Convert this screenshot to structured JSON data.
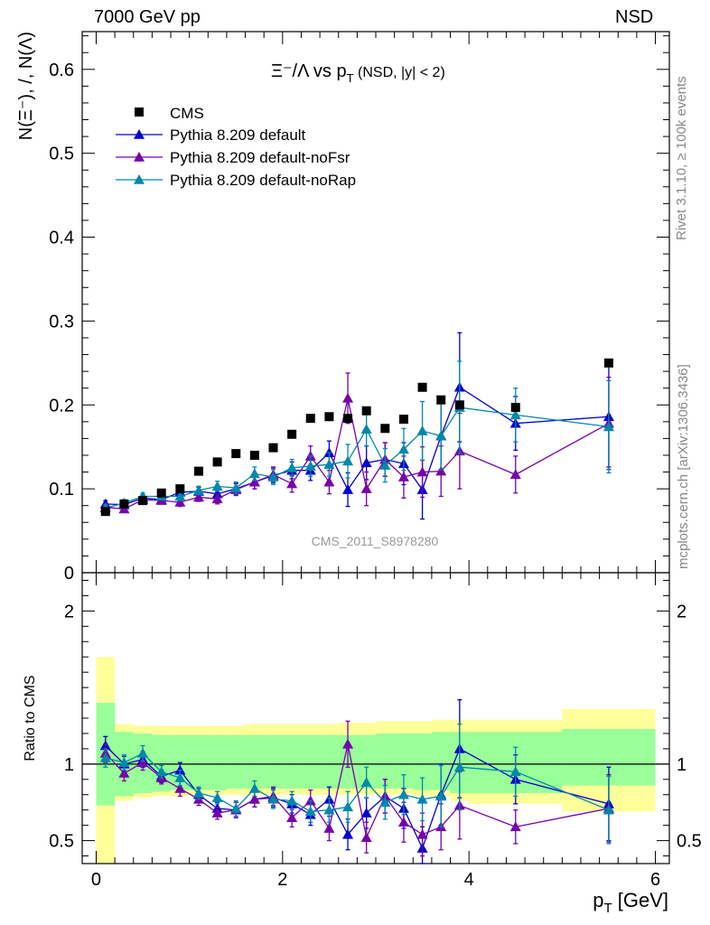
{
  "header": {
    "energy_label": "7000 GeV pp",
    "process_label": "NSD"
  },
  "side": {
    "rivet": "Rivet 3.1.10, ≥ 100k events",
    "mcplots": "mcplots.cern.ch [arXiv:1306.3436]"
  },
  "chart_data": {
    "type": "scatter",
    "title": "Ξ⁻/Λ  vs p_T (NSD, |y| < 2)",
    "xlabel": "p_T [GeV]",
    "ylabel": "N(Ξ⁻), /, N(Λ)",
    "ratio_ylabel": "Ratio to CMS",
    "watermark": "CMS_2011_S8978280",
    "xlim": [
      -0.15,
      6.15
    ],
    "ylim": [
      0,
      0.645
    ],
    "ratio_ylim": [
      0.35,
      2.25
    ],
    "xticks": [
      0,
      2,
      4,
      6
    ],
    "yticks": [
      0,
      0.1,
      0.2,
      0.3,
      0.4,
      0.5,
      0.6
    ],
    "ytick_labels": [
      "0",
      "0.1",
      "0.2",
      "0.3",
      "0.4",
      "0.5",
      "0.6"
    ],
    "ratio_yticks": [
      0.5,
      1,
      2
    ],
    "ratio_ytick_labels": [
      "0.5",
      "1",
      "2"
    ],
    "bin_edges": [
      0,
      0.2,
      0.4,
      0.6,
      0.8,
      1.0,
      1.2,
      1.4,
      1.6,
      1.8,
      2.0,
      2.2,
      2.4,
      2.6,
      2.8,
      3.0,
      3.2,
      3.4,
      3.6,
      3.8,
      4.0,
      5.0,
      6.0
    ],
    "ratio_band_inner": [
      [
        0.73,
        1.4
      ],
      [
        0.79,
        1.21
      ],
      [
        0.81,
        1.2
      ],
      [
        0.82,
        1.19
      ],
      [
        0.83,
        1.19
      ],
      [
        0.83,
        1.19
      ],
      [
        0.83,
        1.19
      ],
      [
        0.84,
        1.19
      ],
      [
        0.84,
        1.19
      ],
      [
        0.84,
        1.19
      ],
      [
        0.84,
        1.19
      ],
      [
        0.84,
        1.19
      ],
      [
        0.84,
        1.19
      ],
      [
        0.84,
        1.19
      ],
      [
        0.84,
        1.19
      ],
      [
        0.84,
        1.2
      ],
      [
        0.84,
        1.2
      ],
      [
        0.83,
        1.2
      ],
      [
        0.83,
        1.21
      ],
      [
        0.81,
        1.21
      ],
      [
        0.81,
        1.21
      ],
      [
        0.86,
        1.23
      ]
    ],
    "ratio_band_outer": [
      [
        0,
        1.7
      ],
      [
        0.76,
        1.26
      ],
      [
        0.78,
        1.25
      ],
      [
        0.79,
        1.25
      ],
      [
        0.79,
        1.25
      ],
      [
        0.8,
        1.25
      ],
      [
        0.8,
        1.25
      ],
      [
        0.8,
        1.25
      ],
      [
        0.8,
        1.26
      ],
      [
        0.8,
        1.26
      ],
      [
        0.8,
        1.26
      ],
      [
        0.8,
        1.26
      ],
      [
        0.8,
        1.26
      ],
      [
        0.8,
        1.27
      ],
      [
        0.8,
        1.27
      ],
      [
        0.8,
        1.28
      ],
      [
        0.8,
        1.28
      ],
      [
        0.79,
        1.28
      ],
      [
        0.79,
        1.29
      ],
      [
        0.76,
        1.29
      ],
      [
        0.74,
        1.29
      ],
      [
        0.69,
        1.36
      ]
    ],
    "reference": {
      "name": "CMS",
      "color": "#000000",
      "x": [
        0.1,
        0.3,
        0.5,
        0.7,
        0.9,
        1.1,
        1.3,
        1.5,
        1.7,
        1.9,
        2.1,
        2.3,
        2.5,
        2.7,
        2.9,
        3.1,
        3.3,
        3.5,
        3.7,
        3.9,
        4.5,
        5.5
      ],
      "y": [
        0.073,
        0.082,
        0.086,
        0.095,
        0.1,
        0.121,
        0.132,
        0.142,
        0.14,
        0.149,
        0.165,
        0.184,
        0.186,
        0.184,
        0.193,
        0.172,
        0.183,
        0.221,
        0.206,
        0.2,
        0.197,
        0.25
      ]
    },
    "series": [
      {
        "name": "Pythia 8.209 default",
        "color": "#0000cc",
        "x": [
          0.1,
          0.3,
          0.5,
          0.7,
          0.9,
          1.1,
          1.3,
          1.5,
          1.7,
          1.9,
          2.1,
          2.3,
          2.5,
          2.7,
          2.9,
          3.1,
          3.3,
          3.5,
          3.7,
          3.9,
          4.5,
          5.5
        ],
        "y": [
          0.082,
          0.081,
          0.089,
          0.087,
          0.096,
          0.097,
          0.094,
          0.1,
          0.108,
          0.116,
          0.122,
          0.122,
          0.143,
          0.099,
          0.131,
          0.135,
          0.13,
          0.099,
          0.163,
          0.221,
          0.178,
          0.186
        ],
        "err": [
          0.004,
          0.004,
          0.004,
          0.004,
          0.005,
          0.005,
          0.006,
          0.007,
          0.008,
          0.009,
          0.01,
          0.012,
          0.014,
          0.02,
          0.02,
          0.02,
          0.025,
          0.035,
          0.04,
          0.065,
          0.032,
          0.06
        ],
        "ratio": [
          1.12,
          1.0,
          1.03,
          0.92,
          0.96,
          0.8,
          0.71,
          0.7,
          0.77,
          0.78,
          0.74,
          0.67,
          0.77,
          0.54,
          0.68,
          0.79,
          0.71,
          0.45,
          0.8,
          1.1,
          0.9,
          0.74
        ],
        "ratio_err": [
          0.06,
          0.05,
          0.05,
          0.04,
          0.05,
          0.04,
          0.04,
          0.05,
          0.05,
          0.06,
          0.06,
          0.07,
          0.08,
          0.1,
          0.1,
          0.11,
          0.13,
          0.14,
          0.2,
          0.32,
          0.16,
          0.24
        ]
      },
      {
        "name": "Pythia 8.209 default-noFsr",
        "color": "#7700aa",
        "x": [
          0.1,
          0.3,
          0.5,
          0.7,
          0.9,
          1.1,
          1.3,
          1.5,
          1.7,
          1.9,
          2.1,
          2.3,
          2.5,
          2.7,
          2.9,
          3.1,
          3.3,
          3.5,
          3.7,
          3.9,
          4.5,
          5.5
        ],
        "y": [
          0.078,
          0.076,
          0.087,
          0.086,
          0.084,
          0.09,
          0.088,
          0.099,
          0.108,
          0.117,
          0.106,
          0.139,
          0.108,
          0.208,
          0.1,
          0.135,
          0.114,
          0.12,
          0.121,
          0.145,
          0.117,
          0.178
        ],
        "err": [
          0.004,
          0.004,
          0.004,
          0.004,
          0.005,
          0.005,
          0.006,
          0.007,
          0.008,
          0.009,
          0.01,
          0.012,
          0.014,
          0.03,
          0.02,
          0.02,
          0.025,
          0.03,
          0.03,
          0.045,
          0.022,
          0.055
        ],
        "ratio": [
          1.07,
          0.94,
          1.01,
          0.91,
          0.84,
          0.77,
          0.68,
          0.7,
          0.77,
          0.79,
          0.65,
          0.76,
          0.58,
          1.13,
          0.52,
          0.79,
          0.62,
          0.54,
          0.59,
          0.73,
          0.59,
          0.71
        ],
        "ratio_err": [
          0.06,
          0.05,
          0.05,
          0.04,
          0.05,
          0.04,
          0.04,
          0.05,
          0.05,
          0.06,
          0.06,
          0.07,
          0.08,
          0.15,
          0.1,
          0.11,
          0.13,
          0.14,
          0.15,
          0.22,
          0.11,
          0.22
        ]
      },
      {
        "name": "Pythia 8.209 default-noRap",
        "color": "#0088aa",
        "x": [
          0.1,
          0.3,
          0.5,
          0.7,
          0.9,
          1.1,
          1.3,
          1.5,
          1.7,
          1.9,
          2.1,
          2.3,
          2.5,
          2.7,
          2.9,
          3.1,
          3.3,
          3.5,
          3.7,
          3.9,
          4.5,
          5.5
        ],
        "y": [
          0.077,
          0.083,
          0.091,
          0.091,
          0.091,
          0.098,
          0.103,
          0.101,
          0.118,
          0.114,
          0.125,
          0.127,
          0.129,
          0.133,
          0.171,
          0.128,
          0.147,
          0.169,
          0.163,
          0.197,
          0.188,
          0.174
        ],
        "err": [
          0.004,
          0.004,
          0.004,
          0.004,
          0.005,
          0.005,
          0.006,
          0.007,
          0.008,
          0.009,
          0.01,
          0.012,
          0.014,
          0.02,
          0.02,
          0.02,
          0.025,
          0.035,
          0.04,
          0.055,
          0.032,
          0.055
        ],
        "ratio": [
          1.04,
          1.01,
          1.07,
          0.95,
          0.91,
          0.81,
          0.78,
          0.71,
          0.84,
          0.77,
          0.76,
          0.69,
          0.7,
          0.72,
          0.88,
          0.75,
          0.8,
          0.77,
          0.79,
          0.98,
          0.95,
          0.7
        ],
        "ratio_err": [
          0.06,
          0.05,
          0.05,
          0.04,
          0.05,
          0.04,
          0.04,
          0.05,
          0.05,
          0.06,
          0.06,
          0.07,
          0.08,
          0.1,
          0.1,
          0.11,
          0.13,
          0.14,
          0.2,
          0.28,
          0.16,
          0.22
        ]
      }
    ],
    "band_colors": {
      "inner": "#99ff99",
      "outer": "#ffff99"
    }
  }
}
